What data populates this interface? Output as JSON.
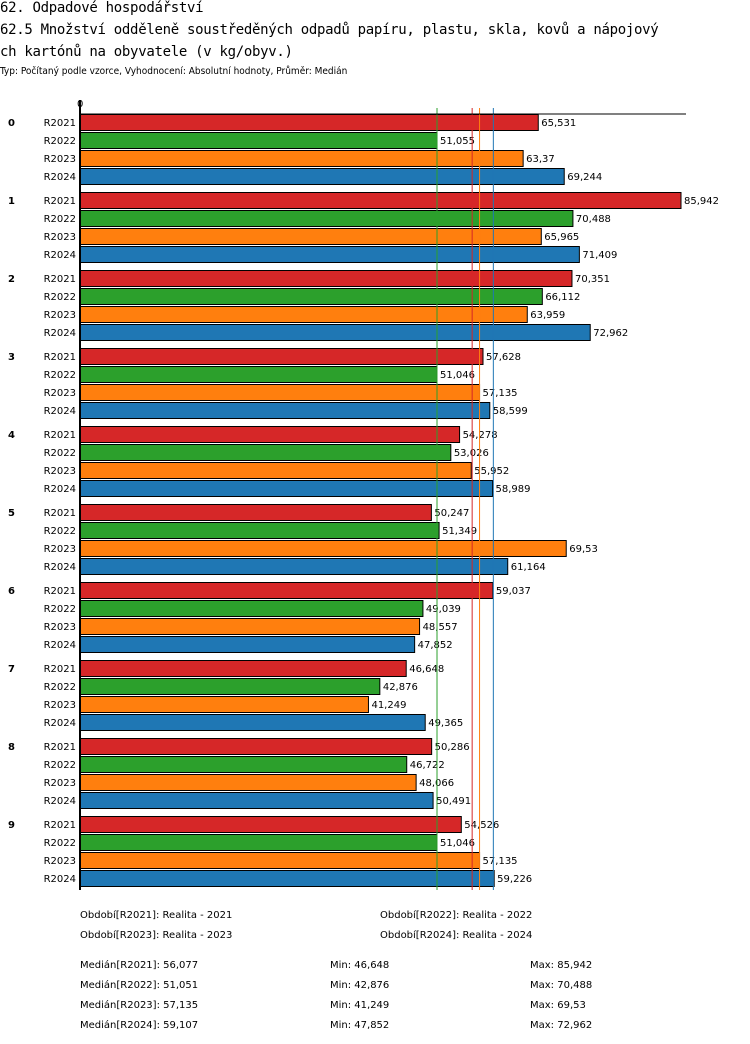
{
  "header": {
    "section": "62. Odpadové hospodářství",
    "title_line1": "62.5 Množství odděleně soustředěných odpadů papíru, plastu, skla, kovů a nápojový",
    "title_line2": "ch kartónů na obyvatele (v kg/obyv.)",
    "subtitle": "Typ: Počítaný podle vzorce, Vyhodnocení: Absolutní hodnoty, Průměr: Medián"
  },
  "chart_data": {
    "type": "bar",
    "orientation": "horizontal",
    "axis_zero_label": "0",
    "xlim": [
      0,
      86
    ],
    "categories": [
      "0",
      "1",
      "2",
      "3",
      "4",
      "5",
      "6",
      "7",
      "8",
      "9"
    ],
    "series": [
      {
        "name": "R2021",
        "color": "#d62728",
        "values": [
          65.531,
          85.942,
          70.351,
          57.628,
          54.278,
          50.247,
          59.037,
          46.648,
          50.286,
          54.526
        ],
        "labels": [
          "65,531",
          "85,942",
          "70,351",
          "57,628",
          "54,278",
          "50,247",
          "59,037",
          "46,648",
          "50,286",
          "54,526"
        ],
        "median": 56.077
      },
      {
        "name": "R2022",
        "color": "#2ca02c",
        "values": [
          51.055,
          70.488,
          66.112,
          51.046,
          53.026,
          51.349,
          49.039,
          42.876,
          46.722,
          51.046
        ],
        "labels": [
          "51,055",
          "70,488",
          "66,112",
          "51,046",
          "53,026",
          "51,349",
          "49,039",
          "42,876",
          "46,722",
          "51,046"
        ],
        "median": 51.051
      },
      {
        "name": "R2023",
        "color": "#ff7f0e",
        "values": [
          63.37,
          65.965,
          63.959,
          57.135,
          55.952,
          69.53,
          48.557,
          41.249,
          48.066,
          57.135
        ],
        "labels": [
          "63,37",
          "65,965",
          "63,959",
          "57,135",
          "55,952",
          "69,53",
          "48,557",
          "41,249",
          "48,066",
          "57,135"
        ],
        "median": 57.135
      },
      {
        "name": "R2024",
        "color": "#1f77b4",
        "values": [
          69.244,
          71.409,
          72.962,
          58.599,
          58.989,
          61.164,
          47.852,
          49.365,
          50.491,
          59.226
        ],
        "labels": [
          "69,244",
          "71,409",
          "72,962",
          "58,599",
          "58,989",
          "61,164",
          "47,852",
          "49,365",
          "50,491",
          "59,226"
        ],
        "median": 59.107
      }
    ],
    "median_lines": true
  },
  "legend": {
    "periods": [
      "Období[R2021]: Realita - 2021",
      "Období[R2022]: Realita - 2022",
      "Období[R2023]: Realita - 2023",
      "Období[R2024]: Realita - 2024"
    ],
    "stats": [
      {
        "median": "Medián[R2021]: 56,077",
        "min": "Min: 46,648",
        "max": "Max: 85,942"
      },
      {
        "median": "Medián[R2022]: 51,051",
        "min": "Min: 42,876",
        "max": "Max: 70,488"
      },
      {
        "median": "Medián[R2023]: 57,135",
        "min": "Min: 41,249",
        "max": "Max: 69,53"
      },
      {
        "median": "Medián[R2024]: 59,107",
        "min": "Min: 47,852",
        "max": "Max: 72,962"
      }
    ]
  }
}
